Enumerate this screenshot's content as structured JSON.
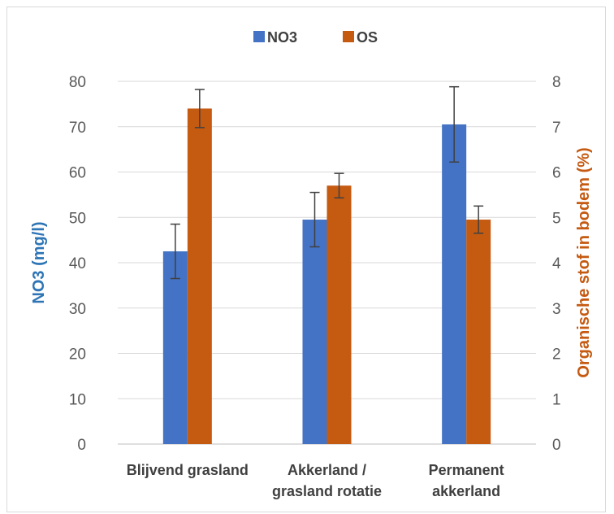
{
  "chart_data": {
    "type": "bar",
    "categories": [
      "Blijvend grasland",
      "Akkerland / grasland rotatie",
      "Permanent akkerland"
    ],
    "category_lines": [
      [
        "Blijvend grasland"
      ],
      [
        "Akkerland /",
        "grasland rotatie"
      ],
      [
        "Permanent",
        "akkerland"
      ]
    ],
    "series": [
      {
        "name": "NO3",
        "axis": "left",
        "color": "#4472C4",
        "values": [
          42.5,
          49.5,
          70.5
        ],
        "error": [
          6.0,
          6.0,
          8.3
        ]
      },
      {
        "name": "OS",
        "axis": "right",
        "color": "#C55A11",
        "values": [
          7.4,
          5.7,
          4.95
        ],
        "error": [
          0.42,
          0.27,
          0.3
        ]
      }
    ],
    "ylabel": "NO3 (mg/l)",
    "ylabel_color": "#2E75B6",
    "y2label": "Organische stof in bodem (%)",
    "y2label_color": "#C55A11",
    "ylim": [
      0,
      80
    ],
    "y2lim": [
      0,
      8
    ],
    "yticks": [
      "0",
      "10",
      "20",
      "30",
      "40",
      "50",
      "60",
      "70",
      "80"
    ],
    "y2ticks": [
      "0",
      "1",
      "2",
      "3",
      "4",
      "5",
      "6",
      "7",
      "8"
    ],
    "grid": true,
    "legend_position": "top"
  }
}
